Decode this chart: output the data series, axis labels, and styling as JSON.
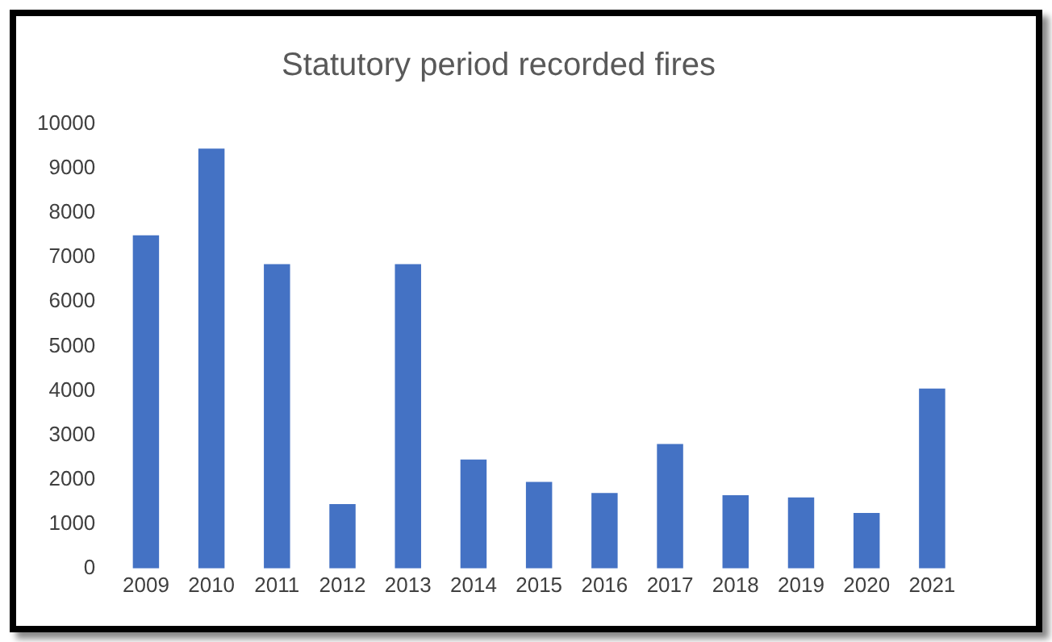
{
  "chart_data": {
    "type": "bar",
    "title": "Statutory period recorded fires",
    "categories": [
      "2009",
      "2010",
      "2011",
      "2012",
      "2013",
      "2014",
      "2015",
      "2016",
      "2017",
      "2018",
      "2019",
      "2020",
      "2021"
    ],
    "values": [
      7500,
      9450,
      6850,
      1450,
      6850,
      2450,
      1950,
      1700,
      2800,
      1650,
      1600,
      1250,
      4050
    ],
    "color": "#4472c4",
    "ylim": [
      0,
      10000
    ],
    "yticks": [
      0,
      1000,
      2000,
      3000,
      4000,
      5000,
      6000,
      7000,
      8000,
      9000,
      10000
    ],
    "grid": false,
    "legend": false
  }
}
